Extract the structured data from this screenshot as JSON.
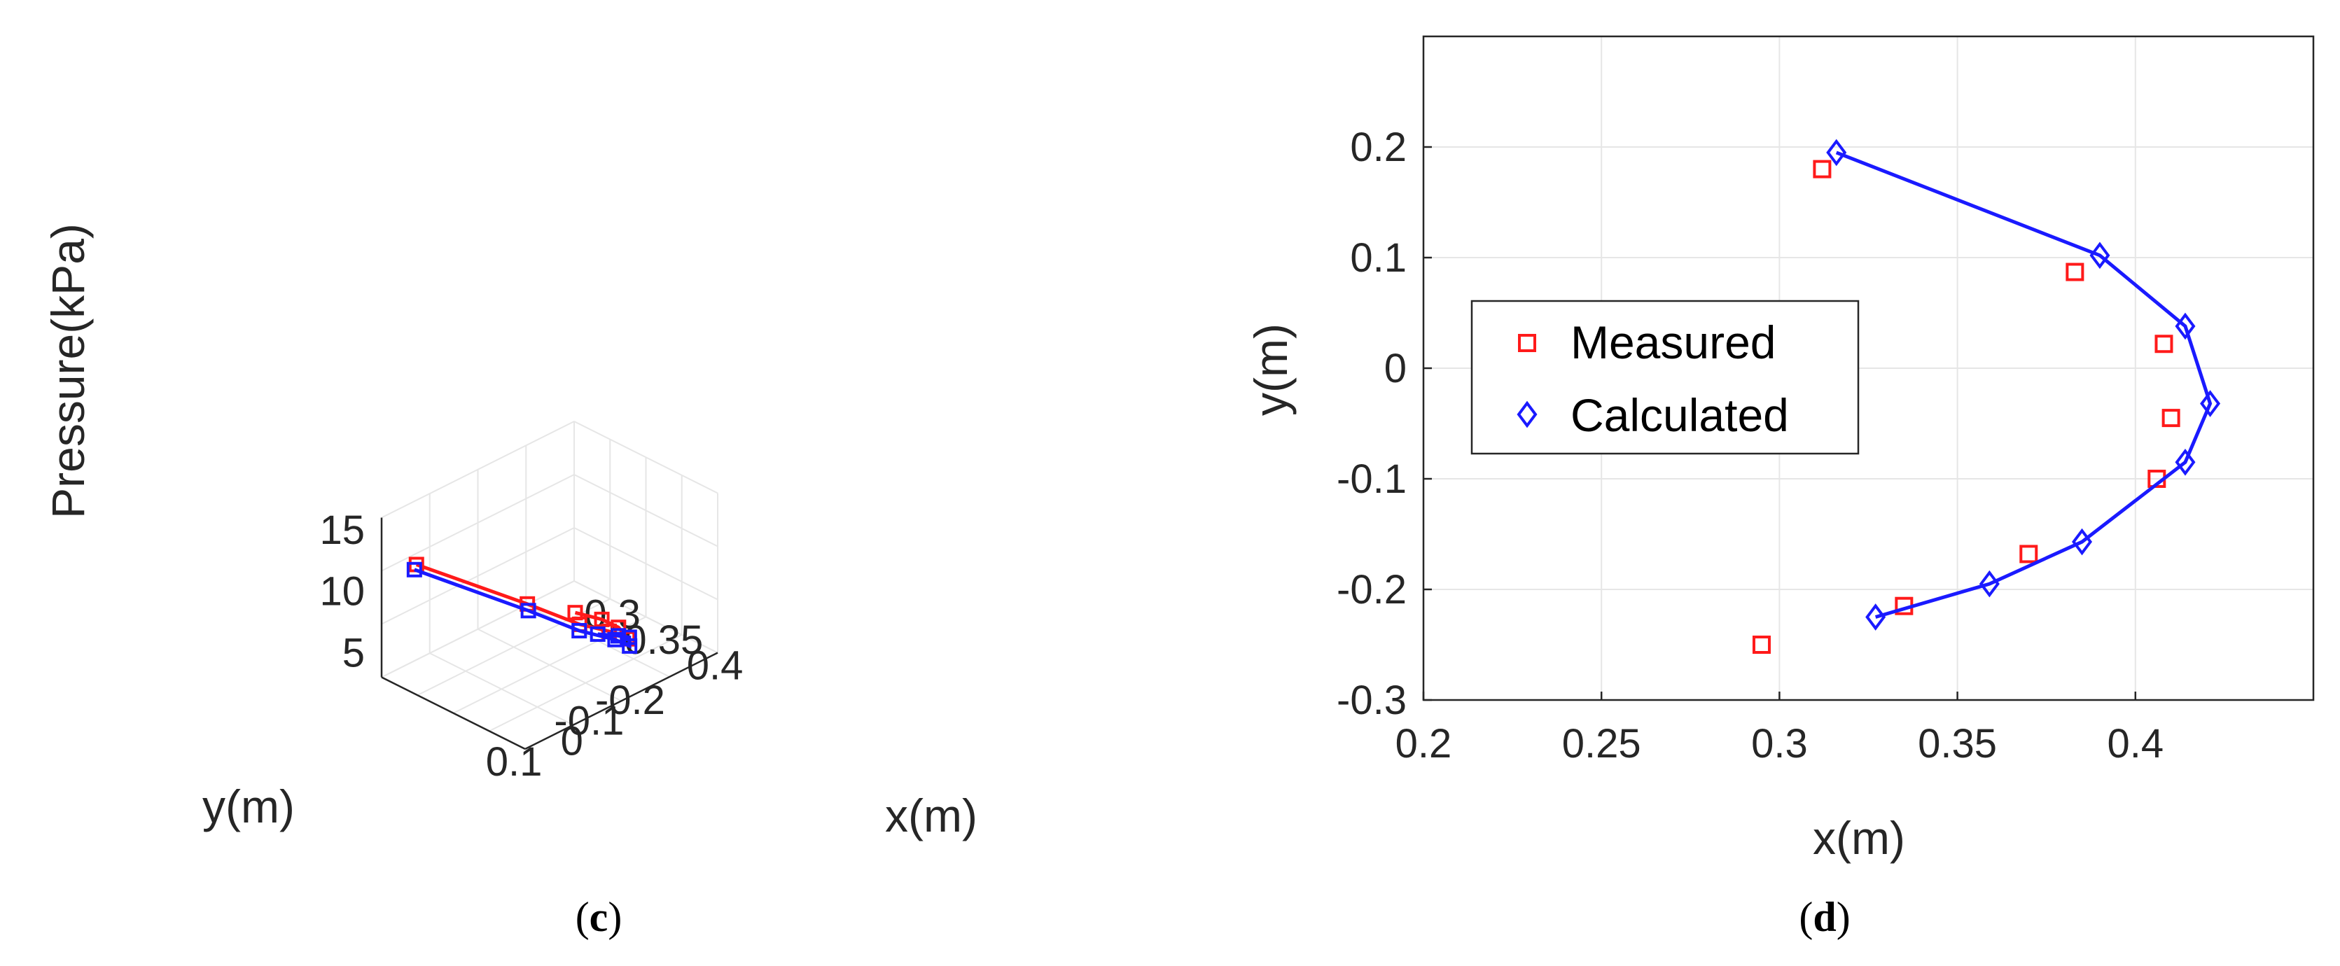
{
  "chart_data": [
    {
      "type": "line",
      "panel": "c",
      "projection": "3d",
      "caption_label": "c",
      "xlabel": "x(m)",
      "ylabel": "y(m)",
      "zlabel": "Pressure(kPa)",
      "x_ticks": [
        "0.3",
        "0.35",
        "0.4"
      ],
      "y_ticks": [
        "0.1",
        "0",
        "-0.1",
        "-0.2"
      ],
      "z_ticks": [
        "5",
        "10",
        "15"
      ],
      "xlim": [
        0.29,
        0.43
      ],
      "ylim": [
        -0.26,
        0.21
      ],
      "zlim": [
        3,
        16
      ],
      "series": [
        {
          "name": "Measured",
          "color": "#ff1a1a",
          "marker": "square",
          "points": [
            {
              "x": 0.295,
              "y": -0.25,
              "z": 0.8
            },
            {
              "x": 0.335,
              "y": -0.215,
              "z": 2.5
            },
            {
              "x": 0.37,
              "y": -0.168,
              "z": 4.1
            },
            {
              "x": 0.406,
              "y": -0.1,
              "z": 5.8
            },
            {
              "x": 0.41,
              "y": -0.045,
              "z": 7.5
            },
            {
              "x": 0.408,
              "y": 0.022,
              "z": 9.1
            },
            {
              "x": 0.383,
              "y": 0.087,
              "z": 10.8
            },
            {
              "x": 0.312,
              "y": 0.18,
              "z": 12.6
            }
          ]
        },
        {
          "name": "Calculated",
          "color": "#1a1aff",
          "marker": "square",
          "points": [
            {
              "x": 0.327,
              "y": -0.225,
              "z": 0.8
            },
            {
              "x": 0.359,
              "y": -0.195,
              "z": 2.5
            },
            {
              "x": 0.385,
              "y": -0.157,
              "z": 4.1
            },
            {
              "x": 0.414,
              "y": -0.085,
              "z": 5.8
            },
            {
              "x": 0.421,
              "y": -0.032,
              "z": 7.5
            },
            {
              "x": 0.414,
              "y": 0.038,
              "z": 9.1
            },
            {
              "x": 0.39,
              "y": 0.102,
              "z": 10.8
            },
            {
              "x": 0.316,
              "y": 0.195,
              "z": 12.6
            }
          ]
        }
      ]
    },
    {
      "type": "scatter",
      "panel": "d",
      "caption_label": "d",
      "xlabel": "x(m)",
      "ylabel": "y(m)",
      "xlim": [
        0.2,
        0.45
      ],
      "ylim": [
        -0.3,
        0.3
      ],
      "grid": true,
      "x_ticks": [
        0.2,
        0.25,
        0.3,
        0.35,
        0.4
      ],
      "y_ticks": [
        -0.3,
        -0.2,
        -0.1,
        0,
        0.1,
        0.2
      ],
      "x_tick_labels": [
        "0.2",
        "0.25",
        "0.3",
        "0.35",
        "0.4"
      ],
      "y_tick_labels": [
        "-0.3",
        "-0.2",
        "-0.1",
        "0",
        "0.1",
        "0.2"
      ],
      "legend_position": "center-left",
      "series": [
        {
          "name": "Measured",
          "color": "#ff1a1a",
          "marker": "square",
          "line": false,
          "x": [
            0.295,
            0.335,
            0.37,
            0.406,
            0.41,
            0.408,
            0.383,
            0.312
          ],
          "y": [
            -0.25,
            -0.215,
            -0.168,
            -0.1,
            -0.045,
            0.022,
            0.087,
            0.18
          ]
        },
        {
          "name": "Calculated",
          "color": "#1a1aff",
          "marker": "diamond",
          "line": true,
          "x": [
            0.327,
            0.359,
            0.385,
            0.414,
            0.421,
            0.414,
            0.39,
            0.316
          ],
          "y": [
            -0.225,
            -0.195,
            -0.157,
            -0.085,
            -0.032,
            0.038,
            0.102,
            0.195
          ]
        }
      ]
    }
  ]
}
